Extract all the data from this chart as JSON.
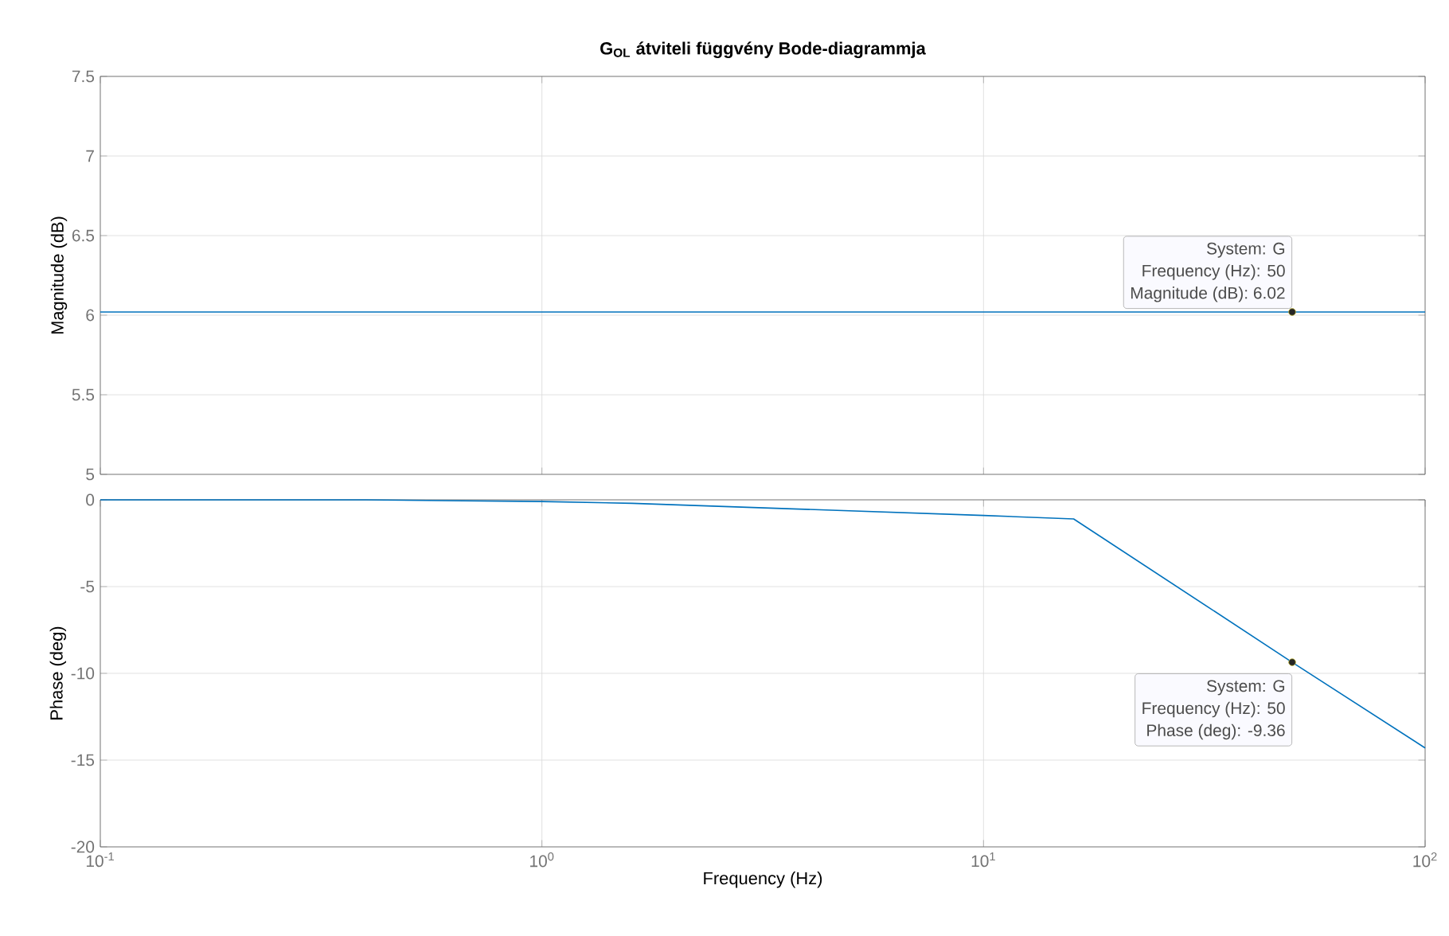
{
  "chart_data": [
    {
      "type": "line",
      "title": "G$_{OL}$ átviteli függvény Bode-diagrammja",
      "ylabel": "Magnitude (dB)",
      "log": "x",
      "grid": true,
      "tick_labels": "y",
      "x": [
        0.1,
        100
      ],
      "series": [
        {
          "color": "#0072bd",
          "values": [
            6.02,
            6.02
          ]
        }
      ],
      "xlim": [
        0.1,
        100
      ],
      "ylim": [
        5,
        7.5
      ],
      "xticks": [
        {
          "value": 0.1,
          "label": null
        },
        {
          "value": 1,
          "label": null
        },
        {
          "value": 10,
          "label": null
        },
        {
          "value": 100,
          "label": null
        }
      ],
      "yticks": [
        5,
        5.5,
        6,
        6.5,
        7,
        7.5
      ],
      "annotations": [
        "System: G",
        "Frequency (Hz): 50",
        {
          "text": "Magnitude (dB): 6.02",
          "x": 50,
          "y": 6.02
        }
      ]
    },
    {
      "type": "line",
      "xlabel": "Frequency  (Hz)",
      "ylabel": "Phase (deg)",
      "log": "x",
      "grid": true,
      "x": [
        0.1,
        0.4,
        1,
        1.6,
        10,
        16,
        50,
        100
      ],
      "series": [
        {
          "color": "#0072bd",
          "values": [
            0,
            0,
            -0.1,
            -0.2,
            -0.9,
            -1.1,
            -9.36,
            -14.3
          ]
        }
      ],
      "xlim": [
        0.1,
        100
      ],
      "ylim": [
        -20,
        0
      ],
      "xticks": [
        {
          "value": 0.1,
          "label": "10$^{-1}$"
        },
        {
          "value": 1,
          "label": "10$^{0}$"
        },
        {
          "value": 10,
          "label": "10$^{1}$"
        },
        {
          "value": 100,
          "label": "10$^{2}$"
        }
      ],
      "yticks": [
        -20,
        -15,
        -10,
        -5,
        0
      ],
      "annotations": [
        {
          "text": "System: G",
          "x": 50,
          "y": -9.36
        },
        "Frequency (Hz): 50",
        "Phase (deg): -9.36"
      ]
    }
  ]
}
